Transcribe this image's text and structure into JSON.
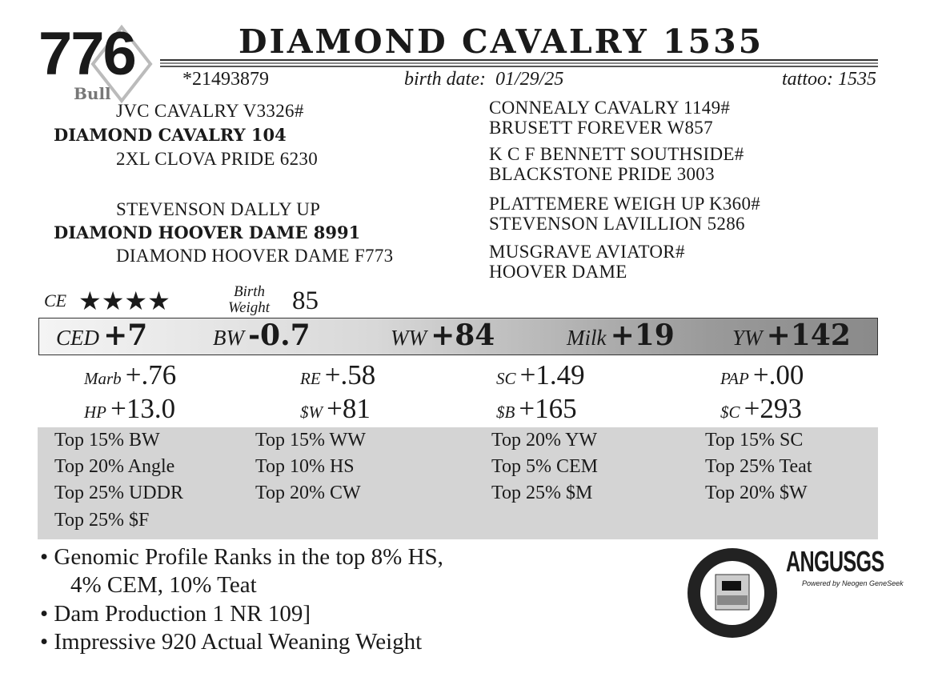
{
  "header": {
    "lot": "776",
    "type": "Bull",
    "name": "DIAMOND CAVALRY 1535",
    "reg": "*21493879",
    "birth_date_label": "birth date:",
    "birth_date": "01/29/25",
    "tattoo_label": "tattoo:",
    "tattoo": "1535"
  },
  "pedigree": {
    "sire_sire": "JVC CAVALRY V3326#",
    "sire": "DIAMOND CAVALRY 104",
    "sire_dam": "2XL CLOVA PRIDE 6230",
    "dam_sire": "STEVENSON DALLY UP",
    "dam": "DIAMOND HOOVER DAME 8991",
    "dam_dam": "DIAMOND HOOVER DAME F773",
    "right": [
      "CONNEALY CAVALRY 1149#",
      "BRUSETT FOREVER W857",
      "K C F BENNETT SOUTHSIDE#",
      "BLACKSTONE PRIDE 3003",
      "PLATTEMERE WEIGH UP K360#",
      "STEVENSON LAVILLION 5286",
      "MUSGRAVE AVIATOR#",
      "HOOVER DAME"
    ]
  },
  "ce": {
    "label": "CE",
    "stars": 4,
    "stars_text": "★★★★"
  },
  "birth_weight": {
    "label1": "Birth",
    "label2": "Weight",
    "value": "85"
  },
  "epd_bar": [
    {
      "label": "CED",
      "value": "+7"
    },
    {
      "label": "BW",
      "value": "-0.7"
    },
    {
      "label": "WW",
      "value": "+84"
    },
    {
      "label": "Milk",
      "value": "+19"
    },
    {
      "label": "YW",
      "value": "+142"
    }
  ],
  "epd_rows": [
    [
      {
        "label": "Marb",
        "value": "+.76"
      },
      {
        "label": "RE",
        "value": "+.58"
      },
      {
        "label": "SC",
        "value": "+1.49"
      },
      {
        "label": "PAP",
        "value": "+.00"
      }
    ],
    [
      {
        "label": "HP",
        "value": "+13.0"
      },
      {
        "label": "$W",
        "value": "+81"
      },
      {
        "label": "$B",
        "value": "+165"
      },
      {
        "label": "$C",
        "value": "+293"
      }
    ]
  ],
  "tops": [
    [
      "Top 15% BW",
      "Top 20% Angle",
      "Top 25% UDDR",
      "Top 25% $F"
    ],
    [
      "Top 15% WW",
      "Top 10% HS",
      "Top 20% CW"
    ],
    [
      "Top 20% YW",
      "Top 5% CEM",
      "Top 25% $M"
    ],
    [
      "Top 15% SC",
      "Top 25% Teat",
      "Top 20% $W"
    ]
  ],
  "bullets": [
    "• Genomic Profile Ranks in the top 8% HS,",
    "4% CEM, 10% Teat",
    "• Dam Production 1 NR 109]",
    "• Impressive 920 Actual Weaning Weight"
  ],
  "logos": {
    "cab_seal": "Targeting the Brand • Certified Angus Beef",
    "angus_gs": "ANGUSGS",
    "angus_gs_sub": "Powered by Neogen GeneSeek"
  }
}
